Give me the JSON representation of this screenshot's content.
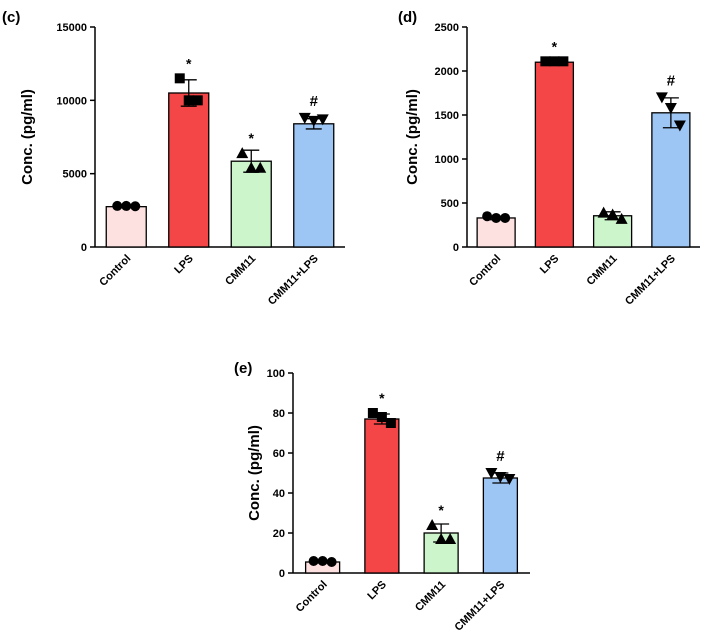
{
  "chart_data": [
    {
      "panel": "(c)",
      "type": "bar",
      "ylabel": "Conc. (pg/ml)",
      "categories": [
        "Control",
        "LPS",
        "CMM11",
        "CMM11+LPS"
      ],
      "values": [
        2750,
        10500,
        5850,
        8400
      ],
      "errors": [
        80,
        900,
        750,
        350
      ],
      "annotations": [
        "",
        "*",
        "*",
        "#"
      ],
      "markers": [
        "circle",
        "square",
        "triangle-up",
        "triangle-down"
      ],
      "points": [
        [
          2800,
          2800,
          2780
        ],
        [
          11500,
          10000,
          10000
        ],
        [
          6400,
          5400,
          5400
        ],
        [
          8800,
          8600,
          8700
        ]
      ],
      "colors": [
        "#fde0e0",
        "#f44646",
        "#ccf5cc",
        "#9ec6f5"
      ],
      "ylim": [
        0,
        15000
      ],
      "yticks": [
        0,
        5000,
        10000,
        15000
      ]
    },
    {
      "panel": "(d)",
      "type": "bar",
      "ylabel": "Conc. (pg/ml)",
      "categories": [
        "Control",
        "LPS",
        "CMM11",
        "CMM11+LPS"
      ],
      "values": [
        330,
        2100,
        355,
        1525
      ],
      "errors": [
        20,
        25,
        45,
        170
      ],
      "annotations": [
        "",
        "*",
        "",
        "#"
      ],
      "markers": [
        "circle",
        "square",
        "triangle-up",
        "triangle-down"
      ],
      "points": [
        [
          350,
          330,
          330
        ],
        [
          2110,
          2110,
          2110
        ],
        [
          390,
          370,
          320
        ],
        [
          1700,
          1580,
          1380
        ]
      ],
      "colors": [
        "#fde0e0",
        "#f44646",
        "#ccf5cc",
        "#9ec6f5"
      ],
      "ylim": [
        0,
        2500
      ],
      "yticks": [
        0,
        500,
        1000,
        1500,
        2000,
        2500
      ]
    },
    {
      "panel": "(e)",
      "type": "bar",
      "ylabel": "Conc. (pg/ml)",
      "categories": [
        "Control",
        "LPS",
        "CMM11",
        "CMM11+LPS"
      ],
      "values": [
        5.5,
        77,
        20,
        47.5
      ],
      "errors": [
        0.5,
        2.5,
        4.5,
        2.5
      ],
      "annotations": [
        "",
        "*",
        "*",
        "#"
      ],
      "markers": [
        "circle",
        "square",
        "triangle-up",
        "triangle-down"
      ],
      "points": [
        [
          6,
          6,
          5.5
        ],
        [
          80,
          78,
          75
        ],
        [
          24,
          17,
          17
        ],
        [
          50,
          48,
          47
        ]
      ],
      "colors": [
        "#fde0e0",
        "#f44646",
        "#ccf5cc",
        "#9ec6f5"
      ],
      "ylim": [
        0,
        100
      ],
      "yticks": [
        0,
        20,
        40,
        60,
        80,
        100
      ]
    }
  ]
}
